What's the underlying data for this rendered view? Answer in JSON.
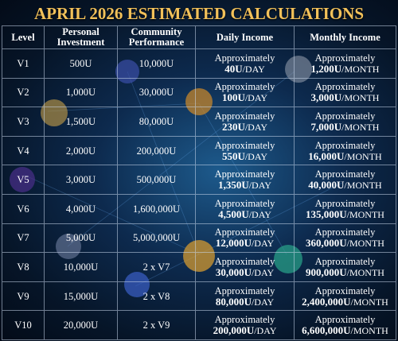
{
  "title": "APRIL 2026 ESTIMATED CALCULATIONS",
  "table": {
    "headers": [
      "Level",
      "Personal Investment",
      "Community Performance",
      "Daily Income",
      "Monthly Income"
    ],
    "rows": [
      {
        "level": "V1",
        "investment": "500U",
        "community": "10,000U",
        "daily": {
          "prefix": "Approximately",
          "amount": "40U",
          "unit": "/DAY"
        },
        "monthly": {
          "prefix": "Approximately",
          "amount": "1,200U",
          "unit": "/MONTH"
        }
      },
      {
        "level": "V2",
        "investment": "1,000U",
        "community": "30,000U",
        "daily": {
          "prefix": "Approximately",
          "amount": "100U",
          "unit": "/DAY"
        },
        "monthly": {
          "prefix": "Approximately",
          "amount": "3,000U",
          "unit": "/MONTH"
        }
      },
      {
        "level": "V3",
        "investment": "1,500U",
        "community": "80,000U",
        "daily": {
          "prefix": "Approximately",
          "amount": "230U",
          "unit": "/DAY"
        },
        "monthly": {
          "prefix": "Approximately",
          "amount": "7,000U",
          "unit": "/MONTH"
        }
      },
      {
        "level": "V4",
        "investment": "2,000U",
        "community": "200,000U",
        "daily": {
          "prefix": "Approximately",
          "amount": "550U",
          "unit": "/DAY"
        },
        "monthly": {
          "prefix": "Approximately",
          "amount": "16,000U",
          "unit": "/MONTH"
        }
      },
      {
        "level": "V5",
        "investment": "3,000U",
        "community": "500,000U",
        "daily": {
          "prefix": "Approximately",
          "amount": "1,350U",
          "unit": "/DAY"
        },
        "monthly": {
          "prefix": "Approximately",
          "amount": "40,000U",
          "unit": "/MONTH"
        }
      },
      {
        "level": "V6",
        "investment": "4,000U",
        "community": "1,600,000U",
        "daily": {
          "prefix": "Approximately",
          "amount": "4,500U",
          "unit": "/DAY"
        },
        "monthly": {
          "prefix": "Approximately",
          "amount": "135,000U",
          "unit": "/MONTH"
        }
      },
      {
        "level": "V7",
        "investment": "5,000U",
        "community": "5,000,000U",
        "daily": {
          "prefix": "Approximately",
          "amount": "12,000U",
          "unit": "/DAY"
        },
        "monthly": {
          "prefix": "Approximately",
          "amount": "360,000U",
          "unit": "/MONTH"
        }
      },
      {
        "level": "V8",
        "investment": "10,000U",
        "community": "2 x V7",
        "daily": {
          "prefix": "Approximately",
          "amount": "30,000U",
          "unit": "/DAY"
        },
        "monthly": {
          "prefix": "Approximately",
          "amount": "900,000U",
          "unit": "/MONTH"
        }
      },
      {
        "level": "V9",
        "investment": "15,000U",
        "community": "2 x V8",
        "daily": {
          "prefix": "Approximately",
          "amount": "80,000U",
          "unit": "/DAY"
        },
        "monthly": {
          "prefix": "Approximately",
          "amount": "2,400,000U",
          "unit": "/MONTH"
        }
      },
      {
        "level": "V10",
        "investment": "20,000U",
        "community": "2 x V9",
        "daily": {
          "prefix": "Approximately",
          "amount": "200,000U",
          "unit": "/DAY"
        },
        "monthly": {
          "prefix": "Approximately",
          "amount": "6,600,000U",
          "unit": "/MONTH"
        }
      }
    ]
  }
}
